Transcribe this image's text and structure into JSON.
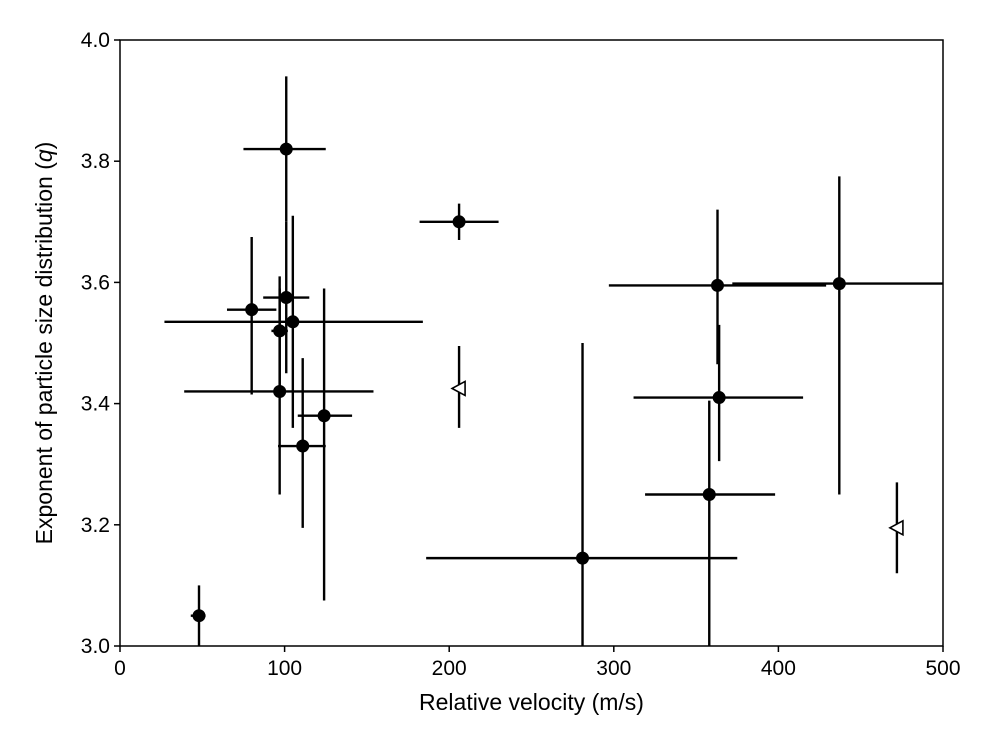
{
  "chart_data": {
    "type": "scatter",
    "title": "",
    "xlabel": "Relative velocity (m/s)",
    "ylabel_prefix": "Exponent of particle size distribution (",
    "ylabel_var": "q",
    "ylabel_suffix": ")",
    "xlim": [
      0,
      500
    ],
    "ylim": [
      3.0,
      4.0
    ],
    "xticks": [
      0,
      100,
      200,
      300,
      400,
      500
    ],
    "yticks": [
      3.0,
      3.2,
      3.4,
      3.6,
      3.8,
      4.0
    ],
    "xtick_labels": [
      "0",
      "100",
      "200",
      "300",
      "400",
      "500"
    ],
    "ytick_labels": [
      "3.0",
      "3.2",
      "3.4",
      "3.6",
      "3.8",
      "4.0"
    ],
    "grid": false,
    "series": [
      {
        "marker": "filled-circle",
        "points": [
          {
            "x": 48,
            "y": 3.05,
            "x_low": 43,
            "x_high": 52,
            "y_low": 3.0,
            "y_high": 3.1
          },
          {
            "x": 80,
            "y": 3.555,
            "x_low": 65,
            "x_high": 95,
            "y_low": 3.415,
            "y_high": 3.675
          },
          {
            "x": 97,
            "y": 3.52,
            "x_low": 92,
            "x_high": 102,
            "y_low": 3.43,
            "y_high": 3.61
          },
          {
            "x": 97,
            "y": 3.42,
            "x_low": 39,
            "x_high": 154,
            "y_low": 3.25,
            "y_high": 3.59
          },
          {
            "x": 101,
            "y": 3.82,
            "x_low": 75,
            "x_high": 125,
            "y_low": 3.7,
            "y_high": 3.94
          },
          {
            "x": 101,
            "y": 3.575,
            "x_low": 87,
            "x_high": 115,
            "y_low": 3.45,
            "y_high": 3.7
          },
          {
            "x": 105,
            "y": 3.535,
            "x_low": 27,
            "x_high": 184,
            "y_low": 3.36,
            "y_high": 3.71
          },
          {
            "x": 111,
            "y": 3.33,
            "x_low": 96,
            "x_high": 125,
            "y_low": 3.195,
            "y_high": 3.475
          },
          {
            "x": 124,
            "y": 3.38,
            "x_low": 108,
            "x_high": 141,
            "y_low": 3.075,
            "y_high": 3.59
          },
          {
            "x": 206,
            "y": 3.7,
            "x_low": 182,
            "x_high": 230,
            "y_low": 3.67,
            "y_high": 3.73
          },
          {
            "x": 281,
            "y": 3.145,
            "x_low": 186,
            "x_high": 375,
            "y_low": 3.0,
            "y_high": 3.5
          },
          {
            "x": 358,
            "y": 3.25,
            "x_low": 319,
            "x_high": 398,
            "y_low": 3.0,
            "y_high": 3.405
          },
          {
            "x": 363,
            "y": 3.595,
            "x_low": 297,
            "x_high": 429,
            "y_low": 3.465,
            "y_high": 3.72
          },
          {
            "x": 364,
            "y": 3.41,
            "x_low": 312,
            "x_high": 415,
            "y_low": 3.305,
            "y_high": 3.53
          },
          {
            "x": 437,
            "y": 3.598,
            "x_low": 372,
            "x_high": 500,
            "y_low": 3.25,
            "y_high": 3.775
          }
        ]
      },
      {
        "marker": "open-triangle-left",
        "points": [
          {
            "x": 206,
            "y": 3.425,
            "y_low": 3.36,
            "y_high": 3.495
          },
          {
            "x": 472,
            "y": 3.195,
            "y_low": 3.12,
            "y_high": 3.27
          }
        ]
      }
    ]
  }
}
